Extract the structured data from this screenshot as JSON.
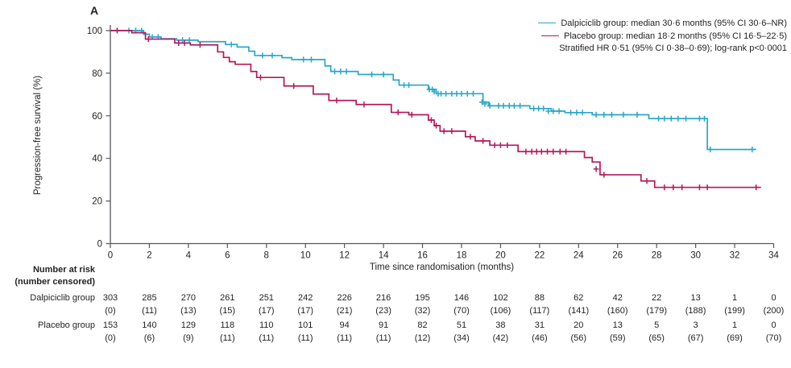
{
  "panel_label": "A",
  "colors": {
    "dalpiciclib": "#29A7C9",
    "placebo": "#B5195B",
    "axis": "#55565A",
    "text": "#231F20"
  },
  "legend": {
    "items": [
      {
        "label": "Dalpiciclib group: median 30·6 months (95% CI 30·6–NR)",
        "color_key": "dalpiciclib"
      },
      {
        "label": "Placebo group: median 18·2 months (95% CI 16·5–22·5)",
        "color_key": "placebo"
      }
    ],
    "note": "Stratified HR 0·51 (95% CI 0·38–0·69); log-rank p<0·0001"
  },
  "axes": {
    "x": {
      "label": "Time since randomisation (months)",
      "min": 0,
      "max": 34,
      "ticks": [
        0,
        2,
        4,
        6,
        8,
        10,
        12,
        14,
        16,
        18,
        20,
        22,
        24,
        26,
        28,
        30,
        32,
        34
      ]
    },
    "y": {
      "label": "Progression-free survival (%)",
      "min": 0,
      "max": 100,
      "ticks": [
        0,
        20,
        40,
        60,
        80,
        100
      ]
    }
  },
  "chart_data": {
    "type": "line",
    "subtype": "kaplan-meier-step",
    "title": "",
    "xlabel": "Time since randomisation (months)",
    "ylabel": "Progression-free survival (%)",
    "xlim": [
      0,
      34
    ],
    "ylim": [
      0,
      100
    ],
    "grid": false,
    "legend_position": "top-right",
    "series": [
      {
        "name": "Dalpiciclib group",
        "color_key": "dalpiciclib",
        "median_months": "30·6",
        "median_ci": "30·6–NR",
        "steps": [
          [
            0,
            100
          ],
          [
            1.7,
            98.3
          ],
          [
            2.0,
            97
          ],
          [
            2.6,
            96.2
          ],
          [
            3.4,
            95.5
          ],
          [
            4.5,
            94.8
          ],
          [
            5.9,
            93.5
          ],
          [
            6.5,
            92.3
          ],
          [
            7.1,
            90.3
          ],
          [
            7.4,
            88.3
          ],
          [
            8.8,
            87.3
          ],
          [
            9.3,
            86.4
          ],
          [
            11.0,
            83.4
          ],
          [
            11.3,
            80.8
          ],
          [
            12.7,
            79.4
          ],
          [
            14.5,
            76.8
          ],
          [
            14.8,
            74.4
          ],
          [
            16.3,
            72.4
          ],
          [
            16.7,
            70.4
          ],
          [
            19.1,
            66.4
          ],
          [
            19.4,
            64.7
          ],
          [
            21.5,
            63.4
          ],
          [
            22.6,
            62.2
          ],
          [
            23.3,
            61.5
          ],
          [
            24.7,
            60.5
          ],
          [
            27.6,
            58.7
          ],
          [
            30.6,
            44.2
          ]
        ],
        "end_time": 33.1,
        "censor_marks": [
          [
            0.95,
            100
          ],
          [
            1.3,
            100
          ],
          [
            1.6,
            100
          ],
          [
            2.15,
            97
          ],
          [
            2.45,
            97
          ],
          [
            3.7,
            95.5
          ],
          [
            4.05,
            95.5
          ],
          [
            6.2,
            93.5
          ],
          [
            7.8,
            88.3
          ],
          [
            8.3,
            88.3
          ],
          [
            9.9,
            86.4
          ],
          [
            10.3,
            86.4
          ],
          [
            11.5,
            80.8
          ],
          [
            11.8,
            80.8
          ],
          [
            12.1,
            80.8
          ],
          [
            13.4,
            79.4
          ],
          [
            14.0,
            79.4
          ],
          [
            15.05,
            74.4
          ],
          [
            15.3,
            74.4
          ],
          [
            16.35,
            72.4
          ],
          [
            16.5,
            72.4
          ],
          [
            16.6,
            71.4
          ],
          [
            16.8,
            70.4
          ],
          [
            16.95,
            70.4
          ],
          [
            17.2,
            70.4
          ],
          [
            17.5,
            70.4
          ],
          [
            17.75,
            70.4
          ],
          [
            18.0,
            70.4
          ],
          [
            18.3,
            70.4
          ],
          [
            18.6,
            70.4
          ],
          [
            19.05,
            66.4
          ],
          [
            19.2,
            65.6
          ],
          [
            19.45,
            64.7
          ],
          [
            19.9,
            64.7
          ],
          [
            20.15,
            64.7
          ],
          [
            20.45,
            64.7
          ],
          [
            20.7,
            64.7
          ],
          [
            21.0,
            64.7
          ],
          [
            21.7,
            63.4
          ],
          [
            21.95,
            63.4
          ],
          [
            22.2,
            63.4
          ],
          [
            22.45,
            62.2
          ],
          [
            22.7,
            62.2
          ],
          [
            23.0,
            62.2
          ],
          [
            23.6,
            61.5
          ],
          [
            23.9,
            61.5
          ],
          [
            24.2,
            61.5
          ],
          [
            24.9,
            60.5
          ],
          [
            25.3,
            60.5
          ],
          [
            25.7,
            60.5
          ],
          [
            26.3,
            60.5
          ],
          [
            27.0,
            60.5
          ],
          [
            28.1,
            58.7
          ],
          [
            28.4,
            58.7
          ],
          [
            28.75,
            58.7
          ],
          [
            29.1,
            58.7
          ],
          [
            29.5,
            58.7
          ],
          [
            30.2,
            58.7
          ],
          [
            30.45,
            58.7
          ],
          [
            30.75,
            44.2
          ],
          [
            32.9,
            44.2
          ]
        ]
      },
      {
        "name": "Placebo group",
        "color_key": "placebo",
        "median_months": "18·2",
        "median_ci": "16·5–22·5",
        "steps": [
          [
            0,
            100
          ],
          [
            1.1,
            99
          ],
          [
            1.8,
            96
          ],
          [
            3.3,
            94.2
          ],
          [
            4.1,
            93.3
          ],
          [
            5.5,
            90
          ],
          [
            5.8,
            87.4
          ],
          [
            6.1,
            85.4
          ],
          [
            6.4,
            84.2
          ],
          [
            7.2,
            80.8
          ],
          [
            7.5,
            78
          ],
          [
            8.9,
            74
          ],
          [
            10.4,
            70.2
          ],
          [
            11.2,
            67.2
          ],
          [
            12.6,
            65.3
          ],
          [
            14.4,
            61.6
          ],
          [
            15.3,
            60.5
          ],
          [
            16.3,
            58
          ],
          [
            16.6,
            55.4
          ],
          [
            16.9,
            52.8
          ],
          [
            18.2,
            50.2
          ],
          [
            18.7,
            48.2
          ],
          [
            19.45,
            46.2
          ],
          [
            20.9,
            43.2
          ],
          [
            24.3,
            40.4
          ],
          [
            24.7,
            38.3
          ],
          [
            25.1,
            32.3
          ],
          [
            27.2,
            29.4
          ],
          [
            27.9,
            26.4
          ]
        ],
        "end_time": 33.35,
        "censor_marks": [
          [
            0.35,
            100
          ],
          [
            1.95,
            96
          ],
          [
            3.5,
            94.2
          ],
          [
            3.8,
            94.2
          ],
          [
            4.6,
            93.3
          ],
          [
            7.7,
            78
          ],
          [
            9.4,
            74
          ],
          [
            11.6,
            67.2
          ],
          [
            13.0,
            65.3
          ],
          [
            14.75,
            61.6
          ],
          [
            15.45,
            60.5
          ],
          [
            16.45,
            58
          ],
          [
            16.7,
            55.4
          ],
          [
            17.1,
            52.8
          ],
          [
            17.5,
            52.8
          ],
          [
            18.45,
            50.2
          ],
          [
            19.1,
            48.2
          ],
          [
            19.7,
            46.2
          ],
          [
            20.0,
            46.2
          ],
          [
            20.35,
            46.2
          ],
          [
            21.3,
            43.2
          ],
          [
            21.6,
            43.2
          ],
          [
            21.85,
            43.2
          ],
          [
            22.1,
            43.2
          ],
          [
            22.4,
            43.2
          ],
          [
            22.7,
            43.2
          ],
          [
            23.05,
            43.2
          ],
          [
            23.35,
            43.2
          ],
          [
            24.9,
            35
          ],
          [
            25.3,
            32.3
          ],
          [
            27.5,
            29.4
          ],
          [
            28.4,
            26.4
          ],
          [
            28.85,
            26.4
          ],
          [
            29.3,
            26.4
          ],
          [
            30.2,
            26.4
          ],
          [
            30.6,
            26.4
          ],
          [
            33.1,
            26.4
          ]
        ]
      }
    ]
  },
  "risk_table": {
    "header_line1": "Number at risk",
    "header_line2": "(number censored)",
    "times": [
      0,
      2,
      4,
      6,
      8,
      10,
      12,
      14,
      16,
      18,
      20,
      22,
      24,
      26,
      28,
      30,
      32,
      34
    ],
    "rows": [
      {
        "label": "Dalpiciclib group",
        "counts": [
          "303",
          "285",
          "270",
          "261",
          "251",
          "242",
          "226",
          "216",
          "195",
          "146",
          "102",
          "88",
          "62",
          "42",
          "22",
          "13",
          "1",
          "0"
        ],
        "censored": [
          "(0)",
          "(11)",
          "(13)",
          "(15)",
          "(17)",
          "(17)",
          "(21)",
          "(23)",
          "(32)",
          "(70)",
          "(106)",
          "(117)",
          "(141)",
          "(160)",
          "(179)",
          "(188)",
          "(199)",
          "(200)"
        ]
      },
      {
        "label": "Placebo group",
        "counts": [
          "153",
          "140",
          "129",
          "118",
          "110",
          "101",
          "94",
          "91",
          "82",
          "51",
          "38",
          "31",
          "20",
          "13",
          "5",
          "3",
          "1",
          "0"
        ],
        "censored": [
          "(0)",
          "(6)",
          "(9)",
          "(11)",
          "(11)",
          "(11)",
          "(11)",
          "(11)",
          "(12)",
          "(34)",
          "(42)",
          "(46)",
          "(56)",
          "(59)",
          "(65)",
          "(67)",
          "(69)",
          "(70)"
        ]
      }
    ]
  }
}
